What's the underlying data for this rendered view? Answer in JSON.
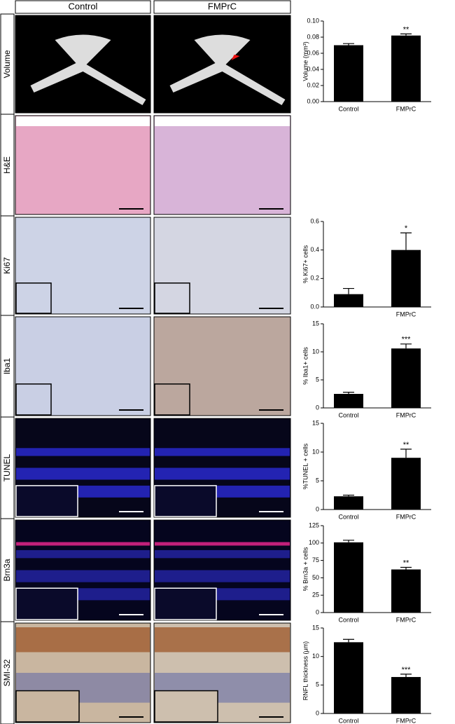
{
  "columns": [
    "Control",
    "FMPrC"
  ],
  "rows": [
    "Volume",
    "H&E",
    "Ki67",
    "Iba1",
    "TUNEL",
    "Brn3a",
    "SMI-32"
  ],
  "chart_data": [
    {
      "type": "bar",
      "ylabel": "Volume (mm³)",
      "categories": [
        "Control",
        "FMPrC"
      ],
      "values": [
        0.07,
        0.082
      ],
      "errors": [
        0.002,
        0.002
      ],
      "annotations": [
        null,
        "**"
      ],
      "color": "#000000",
      "ylim": [
        0,
        0.1
      ],
      "yticks": [
        {
          "value": 0,
          "label": "0.00"
        },
        0.02,
        0.04,
        0.06,
        0.08,
        {
          "value": 0.1,
          "label": "0.10"
        }
      ]
    },
    {
      "type": "bar",
      "ylabel": "% Ki67+ cells",
      "categories": [
        null,
        "FMPrC"
      ],
      "values": [
        0.09,
        0.4
      ],
      "errors": [
        0.04,
        0.12
      ],
      "annotations": [
        null,
        "*"
      ],
      "color": "#000000",
      "ylim": [
        0,
        0.6
      ],
      "yticks": [
        {
          "value": 0,
          "label": "0.0"
        },
        0.2,
        0.4,
        0.6
      ]
    },
    {
      "type": "bar",
      "ylabel": "% Iba1+ cells",
      "categories": [
        "Control",
        "FMPrC"
      ],
      "values": [
        2.5,
        10.6
      ],
      "errors": [
        0.3,
        0.8
      ],
      "annotations": [
        null,
        "***"
      ],
      "color": "#000000",
      "ylim": [
        0,
        15
      ],
      "yticks": [
        0,
        5,
        10,
        15
      ]
    },
    {
      "type": "bar",
      "ylabel": "%TUNEL + cells",
      "categories": [
        "Control",
        "FMPrC"
      ],
      "values": [
        2.3,
        9.0
      ],
      "errors": [
        0.2,
        1.5
      ],
      "annotations": [
        null,
        "**"
      ],
      "color": "#000000",
      "ylim": [
        0,
        15
      ],
      "yticks": [
        0,
        5,
        10,
        15
      ]
    },
    {
      "type": "bar",
      "ylabel": "% Brn3a + cells",
      "categories": [
        "Control",
        "FMPrC"
      ],
      "values": [
        101,
        62
      ],
      "errors": [
        3,
        3
      ],
      "annotations": [
        null,
        "**"
      ],
      "color": "#000000",
      "ylim": [
        0,
        125
      ],
      "yticks": [
        0,
        25,
        50,
        75,
        100,
        125
      ]
    },
    {
      "type": "bar",
      "ylabel": "RNFL thickness (μm)",
      "categories": [
        "Control",
        "FMPrC"
      ],
      "values": [
        12.5,
        6.4
      ],
      "errors": [
        0.5,
        0.5
      ],
      "annotations": [
        null,
        "***"
      ],
      "color": "#000000",
      "ylim": [
        0,
        15
      ],
      "yticks": [
        0,
        5,
        10,
        15
      ]
    }
  ]
}
